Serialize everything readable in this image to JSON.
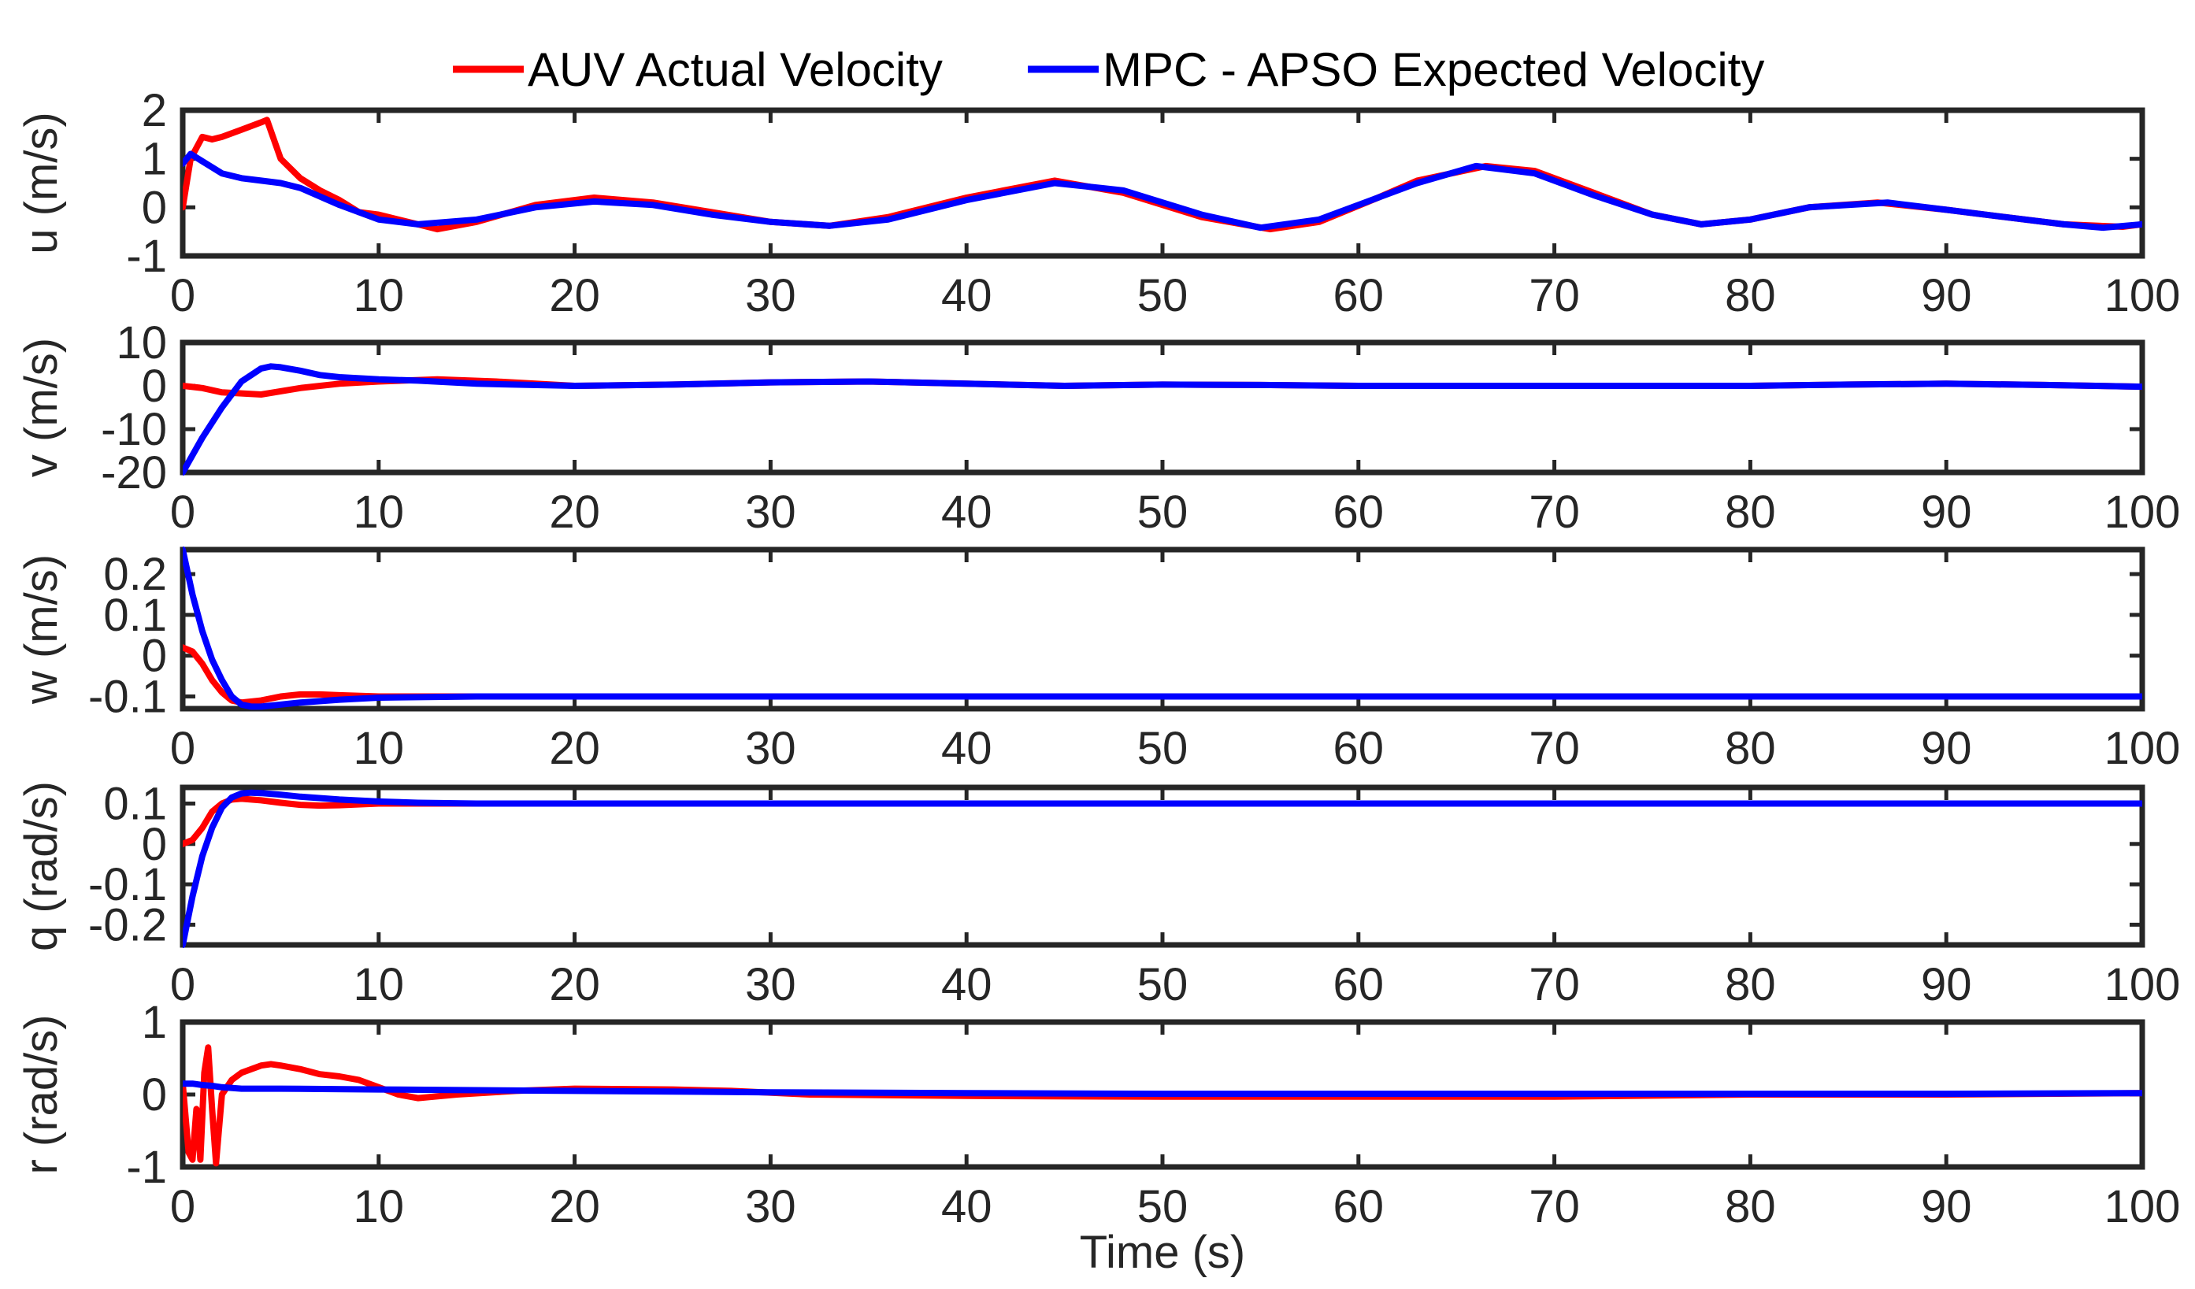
{
  "legend": {
    "entries": [
      {
        "label": "AUV Actual Velocity",
        "color": "#ff0000"
      },
      {
        "label": "MPC - APSO Expected Velocity",
        "color": "#0000ff"
      }
    ]
  },
  "chart_data": [
    {
      "type": "line",
      "ylabel": "u (m/s)",
      "xlabel": "",
      "xlim": [
        0,
        100
      ],
      "ylim": [
        -1,
        2
      ],
      "xticks": [
        "0",
        "10",
        "20",
        "30",
        "40",
        "50",
        "60",
        "70",
        "80",
        "90",
        "100"
      ],
      "yticks": [
        "2",
        "1",
        "0",
        "-1"
      ],
      "series": [
        {
          "name": "AUV Actual Velocity",
          "color": "#ff0000",
          "x": [
            0,
            0.4,
            1,
            1.5,
            2,
            3,
            4,
            4.3,
            5,
            6,
            7,
            8,
            9,
            10,
            12,
            13,
            15,
            18,
            21,
            24,
            27,
            30,
            33,
            36,
            40,
            44.5,
            48,
            52,
            55.5,
            58,
            61,
            63,
            66.5,
            69,
            72,
            75,
            77.5,
            80,
            83,
            86.5,
            90,
            93,
            96,
            99,
            100
          ],
          "y": [
            0,
            1,
            1.45,
            1.4,
            1.45,
            1.6,
            1.75,
            1.8,
            1.0,
            0.6,
            0.35,
            0.15,
            -0.1,
            -0.15,
            -0.35,
            -0.45,
            -0.3,
            0.05,
            0.2,
            0.1,
            -0.1,
            -0.3,
            -0.38,
            -0.2,
            0.2,
            0.55,
            0.3,
            -0.2,
            -0.45,
            -0.3,
            0.2,
            0.55,
            0.85,
            0.75,
            0.3,
            -0.15,
            -0.35,
            -0.25,
            0,
            0.1,
            -0.05,
            -0.2,
            -0.35,
            -0.4,
            -0.35
          ]
        },
        {
          "name": "MPC - APSO Expected Velocity",
          "color": "#0000ff",
          "x": [
            0,
            0.4,
            1,
            2,
            3,
            4,
            5,
            6,
            8,
            10,
            12,
            15,
            18,
            21,
            24,
            27,
            30,
            33,
            36,
            40,
            44.5,
            48,
            52,
            55,
            58,
            61,
            63,
            66,
            69,
            72,
            75,
            77.5,
            80,
            83,
            87,
            90,
            93,
            96,
            98,
            100
          ],
          "y": [
            0.9,
            1.1,
            0.95,
            0.7,
            0.6,
            0.55,
            0.5,
            0.4,
            0.05,
            -0.25,
            -0.35,
            -0.25,
            0,
            0.12,
            0.05,
            -0.15,
            -0.3,
            -0.38,
            -0.25,
            0.15,
            0.5,
            0.35,
            -0.15,
            -0.42,
            -0.25,
            0.2,
            0.5,
            0.85,
            0.7,
            0.25,
            -0.15,
            -0.35,
            -0.25,
            0,
            0.1,
            -0.05,
            -0.2,
            -0.35,
            -0.42,
            -0.35
          ]
        }
      ]
    },
    {
      "type": "line",
      "ylabel": "v (m/s)",
      "xlabel": "",
      "xlim": [
        0,
        100
      ],
      "ylim": [
        -20,
        10
      ],
      "xticks": [
        "0",
        "10",
        "20",
        "30",
        "40",
        "50",
        "60",
        "70",
        "80",
        "90",
        "100"
      ],
      "yticks": [
        "10",
        "0",
        "-10",
        "-20"
      ],
      "series": [
        {
          "name": "AUV Actual Velocity",
          "color": "#ff0000",
          "x": [
            0,
            1,
            2,
            4,
            6,
            8,
            10,
            13,
            16,
            20,
            25,
            30,
            35,
            40,
            45,
            50,
            55,
            60,
            65,
            70,
            75,
            80,
            85,
            90,
            95,
            100
          ],
          "y": [
            0,
            -0.5,
            -1.5,
            -2,
            -0.5,
            0.5,
            1,
            1.5,
            1,
            0,
            0.3,
            0.8,
            1,
            0.5,
            0,
            0.3,
            0.2,
            0,
            0,
            0,
            0,
            0,
            0.3,
            0.5,
            0.2,
            -0.2
          ]
        },
        {
          "name": "MPC - APSO Expected Velocity",
          "color": "#0000ff",
          "x": [
            0,
            1,
            2,
            3,
            4,
            4.5,
            5,
            6,
            7,
            8,
            10,
            12,
            15,
            20,
            25,
            30,
            35,
            40,
            45,
            50,
            55,
            60,
            65,
            70,
            75,
            80,
            85,
            90,
            95,
            100
          ],
          "y": [
            -20,
            -12,
            -5,
            1,
            4,
            4.5,
            4.3,
            3.5,
            2.5,
            2,
            1.5,
            1.2,
            0.5,
            0,
            0.3,
            0.8,
            1,
            0.5,
            0,
            0.3,
            0.2,
            0,
            0,
            0,
            0,
            0,
            0.3,
            0.5,
            0.2,
            -0.2
          ]
        }
      ]
    },
    {
      "type": "line",
      "ylabel": "w (m/s)",
      "xlabel": "",
      "xlim": [
        0,
        100
      ],
      "ylim": [
        -0.13,
        0.26
      ],
      "xticks": [
        "0",
        "10",
        "20",
        "30",
        "40",
        "50",
        "60",
        "70",
        "80",
        "90",
        "100"
      ],
      "yticks": [
        "0.2",
        "0.1",
        "0",
        "-0.1"
      ],
      "series": [
        {
          "name": "AUV Actual Velocity",
          "color": "#ff0000",
          "x": [
            0,
            0.5,
            1,
            1.5,
            2,
            2.5,
            3,
            4,
            5,
            6,
            7,
            8,
            10,
            12,
            15,
            20,
            30,
            40,
            50,
            60,
            70,
            80,
            90,
            100
          ],
          "y": [
            0.02,
            0.01,
            -0.02,
            -0.06,
            -0.09,
            -0.11,
            -0.115,
            -0.11,
            -0.1,
            -0.095,
            -0.095,
            -0.097,
            -0.1,
            -0.1,
            -0.1,
            -0.1,
            -0.1,
            -0.1,
            -0.1,
            -0.1,
            -0.1,
            -0.1,
            -0.1,
            -0.1
          ]
        },
        {
          "name": "MPC - APSO Expected Velocity",
          "color": "#0000ff",
          "x": [
            0,
            0.5,
            1,
            1.5,
            2,
            2.5,
            3,
            3.5,
            4,
            5,
            6,
            8,
            10,
            15,
            20,
            30,
            40,
            50,
            60,
            70,
            80,
            90,
            100
          ],
          "y": [
            0.26,
            0.15,
            0.06,
            -0.01,
            -0.06,
            -0.1,
            -0.12,
            -0.125,
            -0.125,
            -0.12,
            -0.115,
            -0.108,
            -0.103,
            -0.1,
            -0.1,
            -0.1,
            -0.1,
            -0.1,
            -0.1,
            -0.1,
            -0.1,
            -0.1,
            -0.1
          ]
        }
      ]
    },
    {
      "type": "line",
      "ylabel": "q (rad/s)",
      "xlabel": "",
      "xlim": [
        0,
        100
      ],
      "ylim": [
        -0.25,
        0.14
      ],
      "xticks": [
        "0",
        "10",
        "20",
        "30",
        "40",
        "50",
        "60",
        "70",
        "80",
        "90",
        "100"
      ],
      "yticks": [
        "0.1",
        "0",
        "-0.1",
        "-0.2"
      ],
      "series": [
        {
          "name": "AUV Actual Velocity",
          "color": "#ff0000",
          "x": [
            0,
            0.5,
            1,
            1.5,
            2,
            2.5,
            3,
            4,
            5,
            6,
            7,
            8,
            10,
            12,
            15,
            20,
            30,
            40,
            50,
            60,
            70,
            80,
            90,
            100
          ],
          "y": [
            0,
            0.01,
            0.04,
            0.08,
            0.1,
            0.11,
            0.112,
            0.108,
            0.102,
            0.097,
            0.095,
            0.096,
            0.1,
            0.1,
            0.1,
            0.1,
            0.1,
            0.1,
            0.1,
            0.1,
            0.1,
            0.1,
            0.1,
            0.1
          ]
        },
        {
          "name": "MPC - APSO Expected Velocity",
          "color": "#0000ff",
          "x": [
            0,
            0.5,
            1,
            1.5,
            2,
            2.5,
            3,
            3.5,
            4,
            5,
            6,
            8,
            10,
            12,
            15,
            20,
            30,
            40,
            50,
            60,
            70,
            80,
            90,
            100
          ],
          "y": [
            -0.25,
            -0.13,
            -0.03,
            0.04,
            0.09,
            0.115,
            0.125,
            0.127,
            0.126,
            0.122,
            0.117,
            0.11,
            0.105,
            0.102,
            0.1,
            0.1,
            0.1,
            0.1,
            0.1,
            0.1,
            0.1,
            0.1,
            0.1,
            0.1
          ]
        }
      ]
    },
    {
      "type": "line",
      "ylabel": "r (rad/s)",
      "xlabel": "Time (s)",
      "xlim": [
        0,
        100
      ],
      "ylim": [
        -1,
        1
      ],
      "xticks": [
        "0",
        "10",
        "20",
        "30",
        "40",
        "50",
        "60",
        "70",
        "80",
        "90",
        "100"
      ],
      "yticks": [
        "1",
        "0",
        "-1"
      ],
      "series": [
        {
          "name": "AUV Actual Velocity",
          "color": "#ff0000",
          "x": [
            0,
            0.3,
            0.5,
            0.7,
            0.9,
            1.1,
            1.3,
            1.5,
            1.7,
            2,
            2.5,
            3,
            4,
            4.5,
            5,
            6,
            7,
            8,
            9,
            10,
            11,
            12,
            14,
            17,
            20,
            25,
            28,
            32,
            40,
            50,
            60,
            70,
            80,
            90,
            100
          ],
          "y": [
            0.15,
            -0.8,
            -0.9,
            -0.2,
            -0.9,
            0.3,
            0.65,
            -0.2,
            -0.95,
            0,
            0.2,
            0.3,
            0.4,
            0.42,
            0.4,
            0.35,
            0.28,
            0.25,
            0.2,
            0.1,
            0,
            -0.05,
            0,
            0.05,
            0.08,
            0.07,
            0.05,
            0,
            -0.02,
            -0.03,
            -0.03,
            -0.03,
            0,
            0,
            0.02
          ]
        },
        {
          "name": "MPC - APSO Expected Velocity",
          "color": "#0000ff",
          "x": [
            0,
            0.5,
            1,
            1.5,
            2,
            3,
            5,
            10,
            20,
            30,
            40,
            50,
            60,
            70,
            80,
            90,
            100
          ],
          "y": [
            0.15,
            0.15,
            0.13,
            0.12,
            0.1,
            0.08,
            0.08,
            0.07,
            0.05,
            0.03,
            0.02,
            0.01,
            0.01,
            0.01,
            0.01,
            0.01,
            0.02
          ]
        }
      ]
    }
  ]
}
